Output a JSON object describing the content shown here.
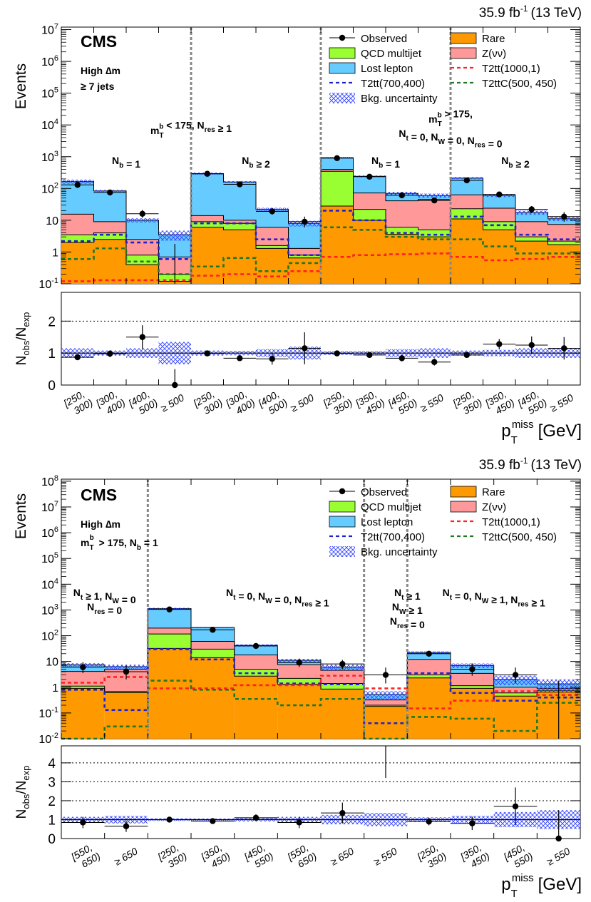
{
  "figure": {
    "lumi_text": "35.9 fb",
    "lumi_exp": "-1",
    "energy_text": "(13 TeV)",
    "cms_label": "CMS",
    "xlabel_main": "p",
    "xlabel_sup": "miss",
    "xlabel_sub": "T",
    "xlabel_unit": "[GeV]",
    "ylabel_top": "Events",
    "ylabel_ratio_main": "N",
    "ylabel_ratio_sub1": "obs",
    "ylabel_ratio_sub2": "exp",
    "legend_title_mark": "∆m"
  },
  "legend": [
    {
      "key": "observed",
      "label": "Observed",
      "style": "point",
      "color": "#000000"
    },
    {
      "key": "rare",
      "label": "Rare",
      "style": "fill",
      "color": "#ff9900"
    },
    {
      "key": "qcd",
      "label": "QCD multijet",
      "style": "fill",
      "color": "#99ff33"
    },
    {
      "key": "znunu",
      "label": "Z(νν)",
      "style": "fill",
      "color": "#ff9999"
    },
    {
      "key": "lostlep",
      "label": "Lost lepton",
      "style": "fill",
      "color": "#66ccff"
    },
    {
      "key": "t2tt1000",
      "label": "T2tt(1000,1)",
      "style": "dash",
      "color": "#ff2222"
    },
    {
      "key": "t2tt700",
      "label": "T2tt(700,400)",
      "style": "dash",
      "color": "#2222cc"
    },
    {
      "key": "t2ttc",
      "label": "T2ttC(500, 450)",
      "style": "dash",
      "color": "#227722"
    },
    {
      "key": "unc",
      "label": "Bkg. uncertainty",
      "style": "hatch",
      "color": "#3333ff"
    }
  ],
  "chart_data": [
    {
      "type": "bar",
      "stacked": true,
      "log_scale": true,
      "ylim": [
        0.1,
        12000000
      ],
      "ratio_ylim": [
        0,
        2.9
      ],
      "ratio_ticks": [
        0,
        1,
        2
      ],
      "ratio_gridlines": [
        1,
        2
      ],
      "ylabel": "Events",
      "xlabel": "p_T^miss [GeV]",
      "sel_line1": "High ∆m",
      "sel_line2": "≥ 7 jets",
      "categories": [
        "[250, 300)",
        "[300, 400)",
        "[400, 500)",
        "≥ 500",
        "[250, 300)",
        "[300, 400)",
        "[400, 500)",
        "≥ 500",
        "[250, 350)",
        "[350, 450)",
        "[450, 550)",
        "≥ 550",
        "[250, 350)",
        "[350, 450)",
        "[450, 550)",
        "≥ 550"
      ],
      "dividers": [
        4,
        8,
        12
      ],
      "regions": [
        {
          "label": "N_b = 1",
          "bin": 1.5
        },
        {
          "label": "N_b ≥ 2",
          "bin": 5.5
        },
        {
          "label": "N_b = 1",
          "bin": 9.5
        },
        {
          "label": "N_b ≥ 2",
          "bin": 13.5
        }
      ],
      "group_labels": [
        {
          "lines": [
            "m_T^b < 175, N_res ≥ 1"
          ],
          "bin": 4
        },
        {
          "lines": [
            "m_T^b > 175,",
            "N_t = 0, N_W = 0, N_res = 0"
          ],
          "bin": 12
        }
      ],
      "series": [
        {
          "key": "rare",
          "name": "Rare",
          "values": [
            2.0,
            2.5,
            0.4,
            0.12,
            6,
            5,
            1.3,
            0.65,
            28,
            10,
            3.6,
            3.0,
            11,
            5,
            2.2,
            1.7
          ]
        },
        {
          "key": "qcd",
          "name": "QCD multijet",
          "values": [
            1.5,
            1.5,
            0.4,
            0.08,
            3,
            3,
            0.3,
            0.15,
            320,
            12,
            2.4,
            2.0,
            12,
            4,
            0.8,
            0.5
          ]
        },
        {
          "key": "znunu",
          "name": "Z(νν)",
          "values": [
            12,
            5,
            1.7,
            0.5,
            5,
            2,
            4.4,
            0.5,
            50,
            50,
            35,
            40,
            40,
            15,
            6.0,
            5.2
          ]
        },
        {
          "key": "lostlep",
          "name": "Lost lepton",
          "values": [
            150,
            75,
            7.5,
            2.8,
            280,
            150,
            16,
            6.7,
            530,
            170,
            29,
            15,
            150,
            36,
            8.5,
            3.8
          ]
        }
      ],
      "signals": [
        {
          "key": "t2tt700",
          "name": "T2tt(700,400)",
          "values": [
            2.2,
            3.5,
            2.0,
            0.6,
            8,
            8,
            2.5,
            0.8,
            20,
            10,
            4,
            3.5,
            13,
            7,
            3.5,
            2.5
          ]
        },
        {
          "key": "t2tt1000",
          "name": "T2tt(1000,1)",
          "values": [
            0.12,
            0.13,
            0.13,
            0.13,
            0.18,
            0.2,
            0.17,
            0.25,
            0.7,
            0.8,
            0.85,
            0.9,
            0.7,
            0.55,
            0.6,
            0.7
          ]
        },
        {
          "key": "t2ttc",
          "name": "T2ttC(500, 450)",
          "values": [
            0.6,
            1.3,
            0.5,
            0.2,
            0.35,
            0.65,
            0.25,
            0.45,
            6,
            5,
            3,
            2.5,
            2.5,
            1.5,
            0.9,
            0.9
          ]
        }
      ],
      "unc_rel": [
        0.15,
        0.08,
        0.15,
        0.35,
        0.08,
        0.07,
        0.12,
        0.2,
        0.06,
        0.06,
        0.12,
        0.15,
        0.08,
        0.1,
        0.15,
        0.15
      ],
      "observed": [
        130,
        75,
        16,
        0,
        290,
        135,
        19,
        9,
        900,
        235,
        61,
        42,
        180,
        65,
        22,
        13
      ],
      "observed_err": [
        [
          11,
          12
        ],
        [
          9,
          9
        ],
        [
          4,
          5
        ],
        [
          0,
          1.8
        ],
        [
          17,
          18
        ],
        [
          11,
          12
        ],
        [
          4,
          5
        ],
        [
          3,
          4
        ],
        [
          30,
          30
        ],
        [
          15,
          16
        ],
        [
          8,
          9
        ],
        [
          6,
          7
        ],
        [
          13,
          14
        ],
        [
          8,
          9
        ],
        [
          5,
          6
        ],
        [
          4,
          5
        ]
      ],
      "ratio": [
        0.87,
        0.98,
        1.5,
        0.0,
        0.99,
        0.84,
        0.82,
        1.15,
        0.99,
        0.94,
        0.84,
        0.72,
        0.94,
        1.28,
        1.25,
        1.15
      ],
      "ratio_err": [
        0.08,
        0.11,
        0.37,
        0.5,
        0.06,
        0.07,
        0.18,
        0.5,
        0.03,
        0.06,
        0.1,
        0.11,
        0.07,
        0.16,
        0.27,
        0.35
      ]
    },
    {
      "type": "bar",
      "stacked": true,
      "log_scale": true,
      "ylim": [
        0.01,
        120000000
      ],
      "ratio_ylim": [
        0,
        4.9
      ],
      "ratio_ticks": [
        0,
        1,
        2,
        3,
        4
      ],
      "ratio_gridlines": [
        1,
        2,
        3,
        4
      ],
      "ylabel": "Events",
      "xlabel": "p_T^miss [GeV]",
      "sel_line1": "High ∆m",
      "sel_line2": "m_T^b > 175, N_b = 1",
      "categories": [
        "[550, 650)",
        "≥ 650",
        "[250, 350)",
        "[350, 450)",
        "[450, 550)",
        "[550, 650)",
        "≥ 650",
        "≥ 550",
        "[250, 350)",
        "[350, 450)",
        "[450, 550)",
        "≥ 550"
      ],
      "dividers": [
        2,
        7,
        8
      ],
      "regions": [],
      "group_labels": [
        {
          "lines": [
            "N_t ≥ 1, N_W = 0",
            "N_res = 0"
          ],
          "bin": 1
        },
        {
          "lines": [
            "N_t = 0, N_W = 0, N_res ≥ 1"
          ],
          "bin": 4.5
        },
        {
          "lines": [
            "N_t ≥ 1",
            "N_W ≥ 1",
            "N_res = 0"
          ],
          "bin": 7.5
        },
        {
          "lines": [
            "N_t = 0, N_W ≥ 1, N_res ≥ 1"
          ],
          "bin": 10
        }
      ],
      "series": [
        {
          "key": "rare",
          "name": "Rare",
          "values": [
            0.9,
            0.62,
            32,
            14,
            2.7,
            1.3,
            0.85,
            0.18,
            2.3,
            0.9,
            0.45,
            0.65
          ]
        },
        {
          "key": "qcd",
          "name": "QCD multijet",
          "values": [
            0.2,
            0.06,
            85,
            16,
            2.3,
            0.9,
            0.55,
            0.02,
            0.7,
            0.25,
            0.15,
            0.1
          ]
        },
        {
          "key": "znunu",
          "name": "Z(νν)",
          "values": [
            3.0,
            4.3,
            80,
            30,
            13,
            5.3,
            3.1,
            0.12,
            9,
            2.3,
            0.4,
            0.15
          ]
        },
        {
          "key": "lostlep",
          "name": "Lost lepton",
          "values": [
            3.3,
            1.3,
            930,
            150,
            24,
            3.5,
            1.5,
            0.2,
            10,
            3.5,
            1.0,
            0.45
          ]
        }
      ],
      "signals": [
        {
          "key": "t2tt700",
          "name": "T2tt(700,400)",
          "values": [
            0.8,
            0.13,
            30,
            12,
            3.5,
            1.4,
            1.3,
            0.04,
            3.5,
            0.6,
            0.3,
            0.4
          ]
        },
        {
          "key": "t2tt1000",
          "name": "T2tt(1000,1)",
          "values": [
            1.5,
            2.5,
            0.9,
            0.9,
            1.2,
            1.2,
            2.8,
            0.9,
            0.15,
            0.3,
            0.7,
            0.5
          ]
        },
        {
          "key": "t2ttc",
          "name": "T2ttC(500, 450)",
          "values": [
            0.01,
            0.03,
            1.8,
            0.8,
            0.35,
            0.2,
            0.35,
            0.01,
            0.07,
            0.06,
            0.02,
            0.25
          ]
        }
      ],
      "unc_rel": [
        0.15,
        0.2,
        0.07,
        0.06,
        0.1,
        0.15,
        0.25,
        0.35,
        0.12,
        0.2,
        0.4,
        0.5
      ],
      "observed": [
        6,
        4,
        1050,
        170,
        40,
        9,
        8,
        3,
        20,
        5,
        3,
        0
      ],
      "observed_err": [
        [
          2.5,
          3.5
        ],
        [
          2,
          3
        ],
        [
          32,
          33
        ],
        [
          13,
          14
        ],
        [
          6,
          7
        ],
        [
          3,
          4
        ],
        [
          3,
          3.5
        ],
        [
          1.6,
          2.8
        ],
        [
          4.5,
          5.5
        ],
        [
          2.2,
          3.4
        ],
        [
          1.6,
          2.8
        ],
        [
          0,
          1.8
        ]
      ],
      "ratio": [
        0.85,
        0.65,
        1.0,
        0.92,
        1.1,
        0.85,
        1.35,
        6.2,
        0.9,
        0.8,
        1.7,
        0.0
      ],
      "ratio_err": [
        0.3,
        0.3,
        0.05,
        0.08,
        0.18,
        0.3,
        0.55,
        3.0,
        0.2,
        0.35,
        1.0,
        1.5
      ]
    }
  ]
}
